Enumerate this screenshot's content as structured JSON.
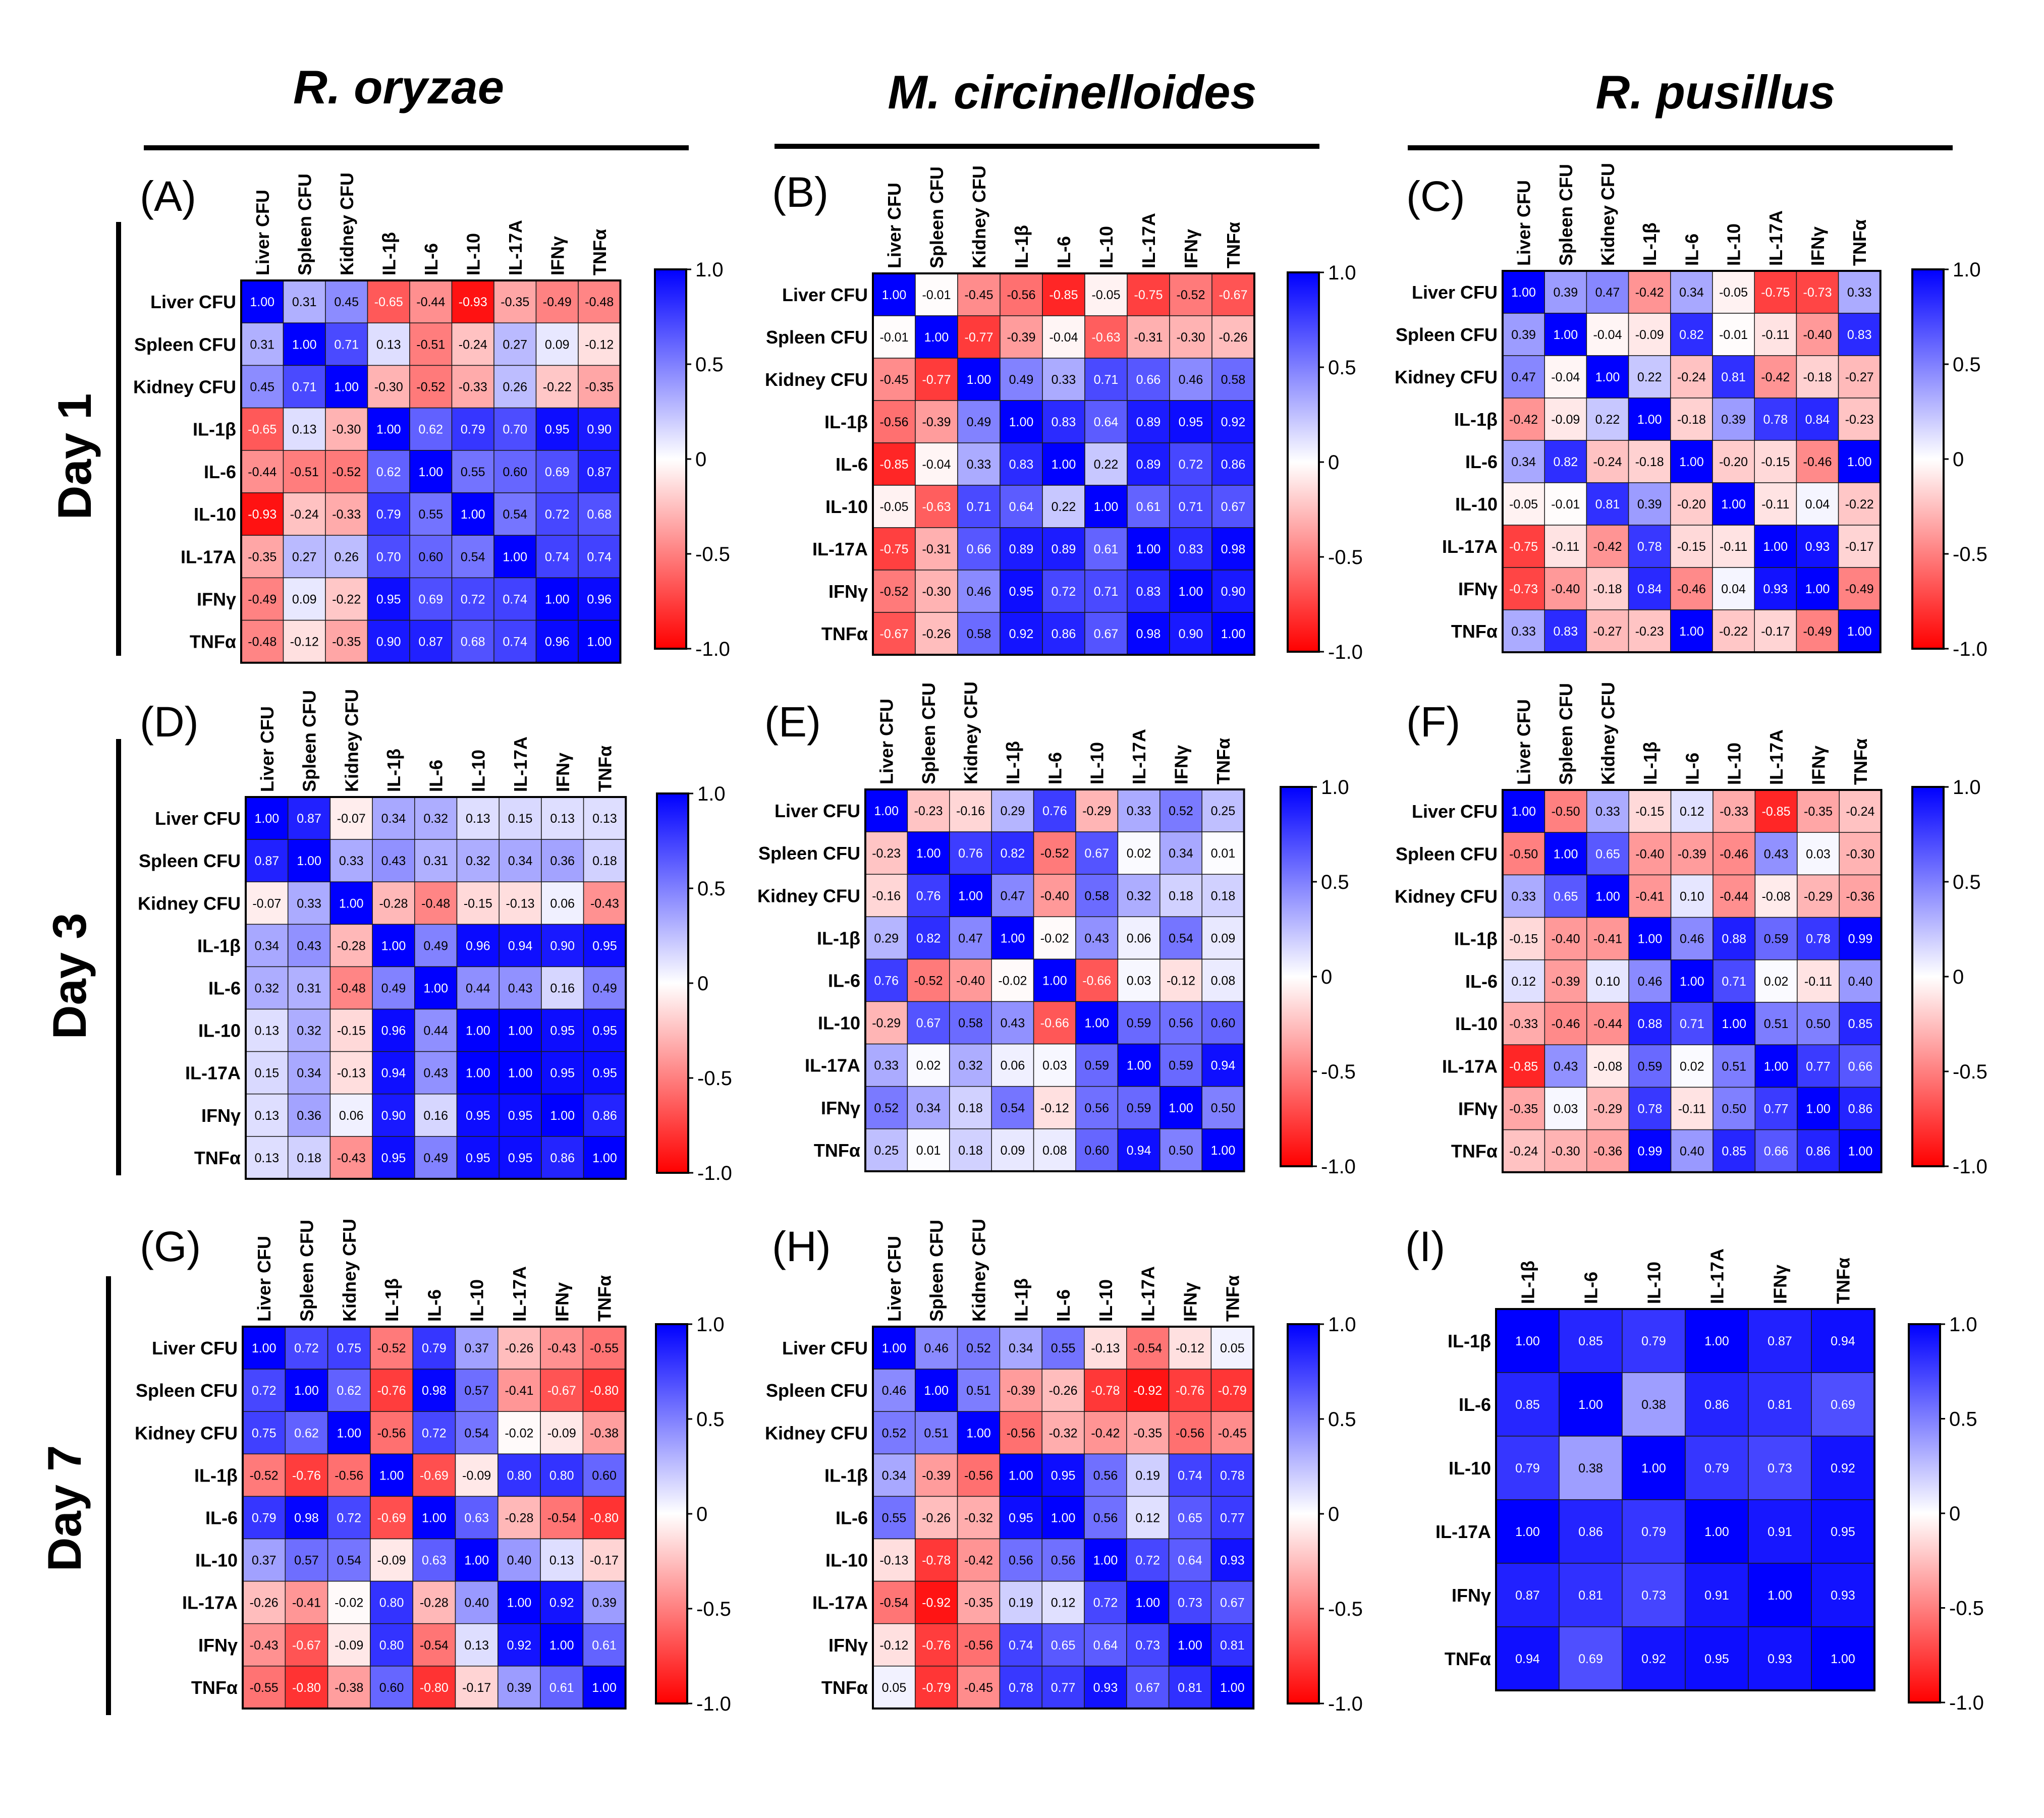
{
  "column_titles": [
    "R. oryzae",
    "M. circinelloides",
    "R. pusillus"
  ],
  "row_titles": [
    "Day 1",
    "Day 3",
    "Day 7"
  ],
  "colorbar": {
    "ticks": [
      "1.0",
      "0.5",
      "0",
      "-0.5",
      "-1.0"
    ],
    "colors": {
      "positive": "#0000ff",
      "zero": "#ffffff",
      "negative": "#ff0000"
    }
  },
  "chart_data": [
    {
      "type": "heatmap",
      "panel": "(A)",
      "column_title": "R. oryzae",
      "row_title": "Day 1",
      "labels": [
        "Liver CFU",
        "Spleen CFU",
        "Kidney CFU",
        "IL-1β",
        "IL-6",
        "IL-10",
        "IL-17A",
        "IFNγ",
        "TNFα"
      ],
      "values": [
        [
          1.0,
          0.31,
          0.45,
          -0.65,
          -0.44,
          -0.93,
          -0.35,
          -0.49,
          -0.48
        ],
        [
          0.31,
          1.0,
          0.71,
          0.13,
          -0.51,
          -0.24,
          0.27,
          0.09,
          -0.12
        ],
        [
          0.45,
          0.71,
          1.0,
          -0.3,
          -0.52,
          -0.33,
          0.26,
          -0.22,
          -0.35
        ],
        [
          -0.65,
          0.13,
          -0.3,
          1.0,
          0.62,
          0.79,
          0.7,
          0.95,
          0.9
        ],
        [
          -0.44,
          -0.51,
          -0.52,
          0.62,
          1.0,
          0.55,
          0.6,
          0.69,
          0.87
        ],
        [
          -0.93,
          -0.24,
          -0.33,
          0.79,
          0.55,
          1.0,
          0.54,
          0.72,
          0.68
        ],
        [
          -0.35,
          0.27,
          0.26,
          0.7,
          0.6,
          0.54,
          1.0,
          0.74,
          0.74
        ],
        [
          -0.49,
          0.09,
          -0.22,
          0.95,
          0.69,
          0.72,
          0.74,
          1.0,
          0.96
        ],
        [
          -0.48,
          -0.12,
          -0.35,
          0.9,
          0.87,
          0.68,
          0.74,
          0.96,
          1.0
        ]
      ],
      "range": [
        -1.0,
        1.0
      ]
    },
    {
      "type": "heatmap",
      "panel": "(B)",
      "column_title": "M. circinelloides",
      "row_title": "Day 1",
      "labels": [
        "Liver CFU",
        "Spleen CFU",
        "Kidney CFU",
        "IL-1β",
        "IL-6",
        "IL-10",
        "IL-17A",
        "IFNγ",
        "TNFα"
      ],
      "values": [
        [
          1.0,
          -0.01,
          -0.45,
          -0.56,
          -0.85,
          -0.05,
          -0.75,
          -0.52,
          -0.67
        ],
        [
          -0.01,
          1.0,
          -0.77,
          -0.39,
          -0.04,
          -0.63,
          -0.31,
          -0.3,
          -0.26
        ],
        [
          -0.45,
          -0.77,
          1.0,
          0.49,
          0.33,
          0.71,
          0.66,
          0.46,
          0.58
        ],
        [
          -0.56,
          -0.39,
          0.49,
          1.0,
          0.83,
          0.64,
          0.89,
          0.95,
          0.92
        ],
        [
          -0.85,
          -0.04,
          0.33,
          0.83,
          1.0,
          0.22,
          0.89,
          0.72,
          0.86
        ],
        [
          -0.05,
          -0.63,
          0.71,
          0.64,
          0.22,
          1.0,
          0.61,
          0.71,
          0.67
        ],
        [
          -0.75,
          -0.31,
          0.66,
          0.89,
          0.89,
          0.61,
          1.0,
          0.83,
          0.98
        ],
        [
          -0.52,
          -0.3,
          0.46,
          0.95,
          0.72,
          0.71,
          0.83,
          1.0,
          0.9
        ],
        [
          -0.67,
          -0.26,
          0.58,
          0.92,
          0.86,
          0.67,
          0.98,
          0.9,
          1.0
        ]
      ],
      "range": [
        -1.0,
        1.0
      ]
    },
    {
      "type": "heatmap",
      "panel": "(C)",
      "column_title": "R. pusillus",
      "row_title": "Day 1",
      "labels": [
        "Liver CFU",
        "Spleen CFU",
        "Kidney CFU",
        "IL-1β",
        "IL-6",
        "IL-10",
        "IL-17A",
        "IFNγ",
        "TNFα"
      ],
      "values": [
        [
          1.0,
          0.39,
          0.47,
          -0.42,
          0.34,
          -0.05,
          -0.75,
          -0.73,
          0.33
        ],
        [
          0.39,
          1.0,
          -0.04,
          -0.09,
          0.82,
          -0.01,
          -0.11,
          -0.4,
          0.83
        ],
        [
          0.47,
          -0.04,
          1.0,
          0.22,
          -0.24,
          0.81,
          -0.42,
          -0.18,
          -0.27
        ],
        [
          -0.42,
          -0.09,
          0.22,
          1.0,
          -0.18,
          0.39,
          0.78,
          0.84,
          -0.23
        ],
        [
          0.34,
          0.82,
          -0.24,
          -0.18,
          1.0,
          -0.2,
          -0.15,
          -0.46,
          1.0
        ],
        [
          -0.05,
          -0.01,
          0.81,
          0.39,
          -0.2,
          1.0,
          -0.11,
          0.04,
          -0.22
        ],
        [
          -0.75,
          -0.11,
          -0.42,
          0.78,
          -0.15,
          -0.11,
          1.0,
          0.93,
          -0.17
        ],
        [
          -0.73,
          -0.4,
          -0.18,
          0.84,
          -0.46,
          0.04,
          0.93,
          1.0,
          -0.49
        ],
        [
          0.33,
          0.83,
          -0.27,
          -0.23,
          1.0,
          -0.22,
          -0.17,
          -0.49,
          1.0
        ]
      ],
      "range": [
        -1.0,
        1.0
      ]
    },
    {
      "type": "heatmap",
      "panel": "(D)",
      "column_title": "R. oryzae",
      "row_title": "Day 3",
      "labels": [
        "Liver CFU",
        "Spleen CFU",
        "Kidney CFU",
        "IL-1β",
        "IL-6",
        "IL-10",
        "IL-17A",
        "IFNγ",
        "TNFα"
      ],
      "values": [
        [
          1.0,
          0.87,
          -0.07,
          0.34,
          0.32,
          0.13,
          0.15,
          0.13,
          0.13
        ],
        [
          0.87,
          1.0,
          0.33,
          0.43,
          0.31,
          0.32,
          0.34,
          0.36,
          0.18
        ],
        [
          -0.07,
          0.33,
          1.0,
          -0.28,
          -0.48,
          -0.15,
          -0.13,
          0.06,
          -0.43
        ],
        [
          0.34,
          0.43,
          -0.28,
          1.0,
          0.49,
          0.96,
          0.94,
          0.9,
          0.95
        ],
        [
          0.32,
          0.31,
          -0.48,
          0.49,
          1.0,
          0.44,
          0.43,
          0.16,
          0.49
        ],
        [
          0.13,
          0.32,
          -0.15,
          0.96,
          0.44,
          1.0,
          1.0,
          0.95,
          0.95
        ],
        [
          0.15,
          0.34,
          -0.13,
          0.94,
          0.43,
          1.0,
          1.0,
          0.95,
          0.95
        ],
        [
          0.13,
          0.36,
          0.06,
          0.9,
          0.16,
          0.95,
          0.95,
          1.0,
          0.86
        ],
        [
          0.13,
          0.18,
          -0.43,
          0.95,
          0.49,
          0.95,
          0.95,
          0.86,
          1.0
        ]
      ],
      "range": [
        -1.0,
        1.0
      ]
    },
    {
      "type": "heatmap",
      "panel": "(E)",
      "column_title": "M. circinelloides",
      "row_title": "Day 3",
      "labels": [
        "Liver CFU",
        "Spleen CFU",
        "Kidney CFU",
        "IL-1β",
        "IL-6",
        "IL-10",
        "IL-17A",
        "IFNγ",
        "TNFα"
      ],
      "values": [
        [
          1.0,
          -0.23,
          -0.16,
          0.29,
          0.76,
          -0.29,
          0.33,
          0.52,
          0.25
        ],
        [
          -0.23,
          1.0,
          0.76,
          0.82,
          -0.52,
          0.67,
          0.02,
          0.34,
          0.01
        ],
        [
          -0.16,
          0.76,
          1.0,
          0.47,
          -0.4,
          0.58,
          0.32,
          0.18,
          0.18
        ],
        [
          0.29,
          0.82,
          0.47,
          1.0,
          -0.02,
          0.43,
          0.06,
          0.54,
          0.09
        ],
        [
          0.76,
          -0.52,
          -0.4,
          -0.02,
          1.0,
          -0.66,
          0.03,
          -0.12,
          0.08
        ],
        [
          -0.29,
          0.67,
          0.58,
          0.43,
          -0.66,
          1.0,
          0.59,
          0.56,
          0.6
        ],
        [
          0.33,
          0.02,
          0.32,
          0.06,
          0.03,
          0.59,
          1.0,
          0.59,
          0.94
        ],
        [
          0.52,
          0.34,
          0.18,
          0.54,
          -0.12,
          0.56,
          0.59,
          1.0,
          0.5
        ],
        [
          0.25,
          0.01,
          0.18,
          0.09,
          0.08,
          0.6,
          0.94,
          0.5,
          1.0
        ]
      ],
      "range": [
        -1.0,
        1.0
      ]
    },
    {
      "type": "heatmap",
      "panel": "(F)",
      "column_title": "R. pusillus",
      "row_title": "Day 3",
      "labels": [
        "Liver CFU",
        "Spleen CFU",
        "Kidney CFU",
        "IL-1β",
        "IL-6",
        "IL-10",
        "IL-17A",
        "IFNγ",
        "TNFα"
      ],
      "values": [
        [
          1.0,
          -0.5,
          0.33,
          -0.15,
          0.12,
          -0.33,
          -0.85,
          -0.35,
          -0.24
        ],
        [
          -0.5,
          1.0,
          0.65,
          -0.4,
          -0.39,
          -0.46,
          0.43,
          0.03,
          -0.3
        ],
        [
          0.33,
          0.65,
          1.0,
          -0.41,
          0.1,
          -0.44,
          -0.08,
          -0.29,
          -0.36
        ],
        [
          -0.15,
          -0.4,
          -0.41,
          1.0,
          0.46,
          0.88,
          0.59,
          0.78,
          0.99
        ],
        [
          0.12,
          -0.39,
          0.1,
          0.46,
          1.0,
          0.71,
          0.02,
          -0.11,
          0.4
        ],
        [
          -0.33,
          -0.46,
          -0.44,
          0.88,
          0.71,
          1.0,
          0.51,
          0.5,
          0.85
        ],
        [
          -0.85,
          0.43,
          -0.08,
          0.59,
          0.02,
          0.51,
          1.0,
          0.77,
          0.66
        ],
        [
          -0.35,
          0.03,
          -0.29,
          0.78,
          -0.11,
          0.5,
          0.77,
          1.0,
          0.86
        ],
        [
          -0.24,
          -0.3,
          -0.36,
          0.99,
          0.4,
          0.85,
          0.66,
          0.86,
          1.0
        ]
      ],
      "range": [
        -1.0,
        1.0
      ]
    },
    {
      "type": "heatmap",
      "panel": "(G)",
      "column_title": "R. oryzae",
      "row_title": "Day 7",
      "labels": [
        "Liver CFU",
        "Spleen CFU",
        "Kidney CFU",
        "IL-1β",
        "IL-6",
        "IL-10",
        "IL-17A",
        "IFNγ",
        "TNFα"
      ],
      "values": [
        [
          1.0,
          0.72,
          0.75,
          -0.52,
          0.79,
          0.37,
          -0.26,
          -0.43,
          -0.55
        ],
        [
          0.72,
          1.0,
          0.62,
          -0.76,
          0.98,
          0.57,
          -0.41,
          -0.67,
          -0.8
        ],
        [
          0.75,
          0.62,
          1.0,
          -0.56,
          0.72,
          0.54,
          -0.02,
          -0.09,
          -0.38
        ],
        [
          -0.52,
          -0.76,
          -0.56,
          1.0,
          -0.69,
          -0.09,
          0.8,
          0.8,
          0.6
        ],
        [
          0.79,
          0.98,
          0.72,
          -0.69,
          1.0,
          0.63,
          -0.28,
          -0.54,
          -0.8
        ],
        [
          0.37,
          0.57,
          0.54,
          -0.09,
          0.63,
          1.0,
          0.4,
          0.13,
          -0.17
        ],
        [
          -0.26,
          -0.41,
          -0.02,
          0.8,
          -0.28,
          0.4,
          1.0,
          0.92,
          0.39
        ],
        [
          -0.43,
          -0.67,
          -0.09,
          0.8,
          -0.54,
          0.13,
          0.92,
          1.0,
          0.61
        ],
        [
          -0.55,
          -0.8,
          -0.38,
          0.6,
          -0.8,
          -0.17,
          0.39,
          0.61,
          1.0
        ]
      ],
      "range": [
        -1.0,
        1.0
      ]
    },
    {
      "type": "heatmap",
      "panel": "(H)",
      "column_title": "M. circinelloides",
      "row_title": "Day 7",
      "labels": [
        "Liver CFU",
        "Spleen CFU",
        "Kidney CFU",
        "IL-1β",
        "IL-6",
        "IL-10",
        "IL-17A",
        "IFNγ",
        "TNFα"
      ],
      "values": [
        [
          1.0,
          0.46,
          0.52,
          0.34,
          0.55,
          -0.13,
          -0.54,
          -0.12,
          0.05
        ],
        [
          0.46,
          1.0,
          0.51,
          -0.39,
          -0.26,
          -0.78,
          -0.92,
          -0.76,
          -0.79
        ],
        [
          0.52,
          0.51,
          1.0,
          -0.56,
          -0.32,
          -0.42,
          -0.35,
          -0.56,
          -0.45
        ],
        [
          0.34,
          -0.39,
          -0.56,
          1.0,
          0.95,
          0.56,
          0.19,
          0.74,
          0.78
        ],
        [
          0.55,
          -0.26,
          -0.32,
          0.95,
          1.0,
          0.56,
          0.12,
          0.65,
          0.77
        ],
        [
          -0.13,
          -0.78,
          -0.42,
          0.56,
          0.56,
          1.0,
          0.72,
          0.64,
          0.93
        ],
        [
          -0.54,
          -0.92,
          -0.35,
          0.19,
          0.12,
          0.72,
          1.0,
          0.73,
          0.67
        ],
        [
          -0.12,
          -0.76,
          -0.56,
          0.74,
          0.65,
          0.64,
          0.73,
          1.0,
          0.81
        ],
        [
          0.05,
          -0.79,
          -0.45,
          0.78,
          0.77,
          0.93,
          0.67,
          0.81,
          1.0
        ]
      ],
      "range": [
        -1.0,
        1.0
      ]
    },
    {
      "type": "heatmap",
      "panel": "(I)",
      "column_title": "R. pusillus",
      "row_title": "Day 7",
      "labels": [
        "IL-1β",
        "IL-6",
        "IL-10",
        "IL-17A",
        "IFNγ",
        "TNFα"
      ],
      "values": [
        [
          1.0,
          0.85,
          0.79,
          1.0,
          0.87,
          0.94
        ],
        [
          0.85,
          1.0,
          0.38,
          0.86,
          0.81,
          0.69
        ],
        [
          0.79,
          0.38,
          1.0,
          0.79,
          0.73,
          0.92
        ],
        [
          1.0,
          0.86,
          0.79,
          1.0,
          0.91,
          0.95
        ],
        [
          0.87,
          0.81,
          0.73,
          0.91,
          1.0,
          0.93
        ],
        [
          0.94,
          0.69,
          0.92,
          0.95,
          0.93,
          1.0
        ]
      ],
      "range": [
        -1.0,
        1.0
      ]
    }
  ]
}
